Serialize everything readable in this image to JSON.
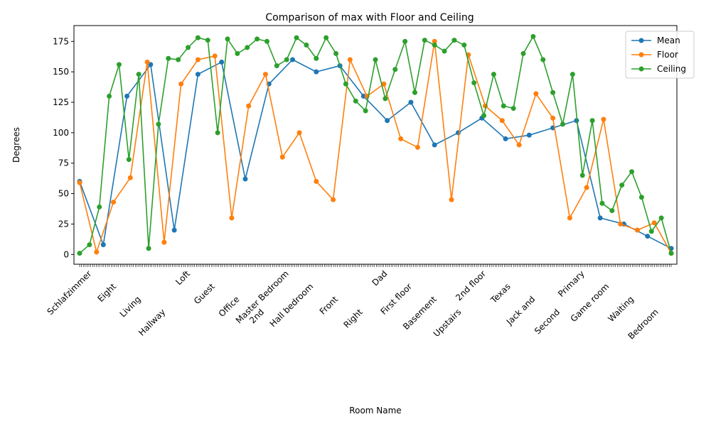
{
  "chart_data": {
    "type": "line",
    "title": "Comparison of max with Floor and Ceiling",
    "xlabel": "Room Name",
    "ylabel": "Degrees",
    "ylim": [
      -8,
      188
    ],
    "yticks": [
      0,
      25,
      50,
      75,
      100,
      125,
      150,
      175
    ],
    "grid": false,
    "legend_position": "top-right",
    "x_tick_labels_visible": [
      "Schlafzimmer",
      "Eight",
      "Living",
      "Hallway",
      "Loft",
      "Guest",
      "Office",
      "2nd",
      "Master Bedroom",
      "Hall bedroom",
      "Front",
      "Right",
      "Dad",
      "First floor",
      "Basement",
      "Upstairs",
      "2nd floor",
      "Texas",
      "Jack and",
      "Second",
      "Primary",
      "Game room",
      "Waiting",
      "Bedroom"
    ],
    "series": [
      {
        "name": "Mean",
        "color": "#1f77b4",
        "values": [
          60,
          8,
          130,
          156,
          20,
          148,
          158,
          62,
          140,
          160,
          150,
          155,
          130,
          110,
          125,
          90,
          100,
          112,
          95,
          98,
          104,
          110,
          30,
          25,
          15,
          5
        ]
      },
      {
        "name": "Floor",
        "color": "#ff7f0e",
        "values": [
          59,
          2,
          43,
          63,
          158,
          10,
          140,
          160,
          163,
          30,
          122,
          148,
          80,
          100,
          60,
          45,
          160,
          130,
          140,
          95,
          88,
          175,
          45,
          164,
          122,
          110,
          90,
          132,
          112,
          30,
          55,
          111,
          25,
          20,
          26,
          1
        ]
      },
      {
        "name": "Ceiling",
        "color": "#2ca02c",
        "values": [
          1,
          8,
          39,
          130,
          156,
          78,
          148,
          5,
          107,
          161,
          160,
          170,
          178,
          176,
          100,
          177,
          165,
          170,
          177,
          175,
          155,
          160,
          178,
          172,
          161,
          178,
          165,
          140,
          126,
          118,
          160,
          128,
          152,
          175,
          133,
          176,
          172,
          167,
          176,
          172,
          141,
          114,
          148,
          122,
          120,
          165,
          179,
          160,
          133,
          107,
          148,
          65,
          110,
          42,
          36,
          57,
          68,
          47,
          19,
          30,
          1
        ]
      }
    ]
  }
}
